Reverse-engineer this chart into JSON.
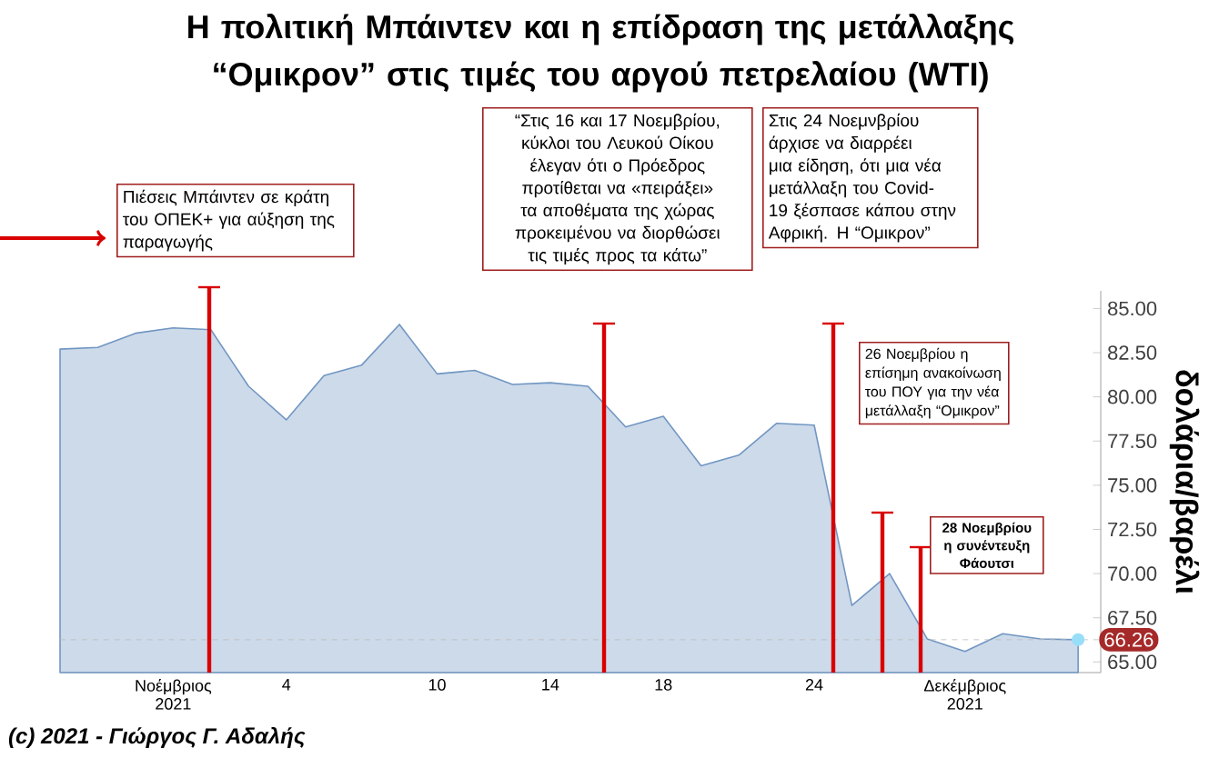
{
  "chart_data": {
    "type": "area",
    "title": "Η πολιτική Μπάιντεν και η επίδραση της μετάλλαξης “Ομικρον” στις τιμές του αργού πετρελαίου (WTI)",
    "ylabel": "δολάρια/βαρέλι",
    "categories": [
      null,
      null,
      null,
      "Νοέμβριος 2021",
      null,
      null,
      "4",
      null,
      null,
      null,
      "10",
      null,
      null,
      "14",
      null,
      null,
      "18",
      null,
      null,
      null,
      "24",
      null,
      null,
      null,
      "Δεκέμβριος 2021",
      null,
      null,
      null
    ],
    "values": [
      82.7,
      82.8,
      83.6,
      83.9,
      83.8,
      80.6,
      78.7,
      81.2,
      81.8,
      84.1,
      81.3,
      81.5,
      80.7,
      80.8,
      80.6,
      78.3,
      78.9,
      76.1,
      76.7,
      78.5,
      78.4,
      68.2,
      70.0,
      66.3,
      65.6,
      66.6,
      66.3,
      66.26
    ],
    "value_labels": [
      null,
      null,
      null,
      null,
      null,
      null,
      null,
      null,
      null,
      null,
      null,
      null,
      null,
      null,
      null,
      null,
      null,
      null,
      null,
      null,
      null,
      null,
      null,
      null,
      null,
      null,
      null,
      "66.26"
    ],
    "color": "#7196c2",
    "ylim": [
      64.4,
      86
    ],
    "yticks": [
      {
        "value": 65,
        "label": "65.00"
      },
      {
        "value": 67.5,
        "label": "67.50"
      },
      {
        "value": 70,
        "label": "70.00"
      },
      {
        "value": 72.5,
        "label": "72.50"
      },
      {
        "value": 75,
        "label": "75.00"
      },
      {
        "value": 77.5,
        "label": "77.50"
      },
      {
        "value": 80,
        "label": "80.00"
      },
      {
        "value": 82.5,
        "label": "82.50"
      },
      {
        "value": 85,
        "label": "85.00"
      }
    ],
    "ref_lines": [
      {
        "axis": "y",
        "value": 66.26,
        "color": "#bbbbbb",
        "line_style": "dashed"
      }
    ],
    "annotations": [
      "Πιέσεις Μπάιντεν σε κράτη του ΟΠΕΚ+ για αύξηση της παραγωγής",
      "“Στις 16 και 17 Νοεμβρίου, κύκλοι του Λευκού Οίκου έλεγαν ότι ο Πρόεδρος προτίθεται να «πειράξει» τα αποθέματα της χώρας προκειμένου να διορθώσει τις τιμές προς τα κάτω”",
      "Στις 24 Νοεμνβρίου άρχισε να διαρρέει μια είδηση, ότι μια νέα μετάλλαξη του Covid-19 ξέσπασε κάπου στην Αφρική. Η “Ομικρον”",
      "26 Νοεμβρίου η επίσημη ανακοίνωση του ΠΟΥ για την νέα μετάλλαξη “Ομικρον”",
      "28 Νοεμβρίου η συνέντευξη Φάουτσι",
      "(c) 2021 - Γιώργος Γ. Αδαλής"
    ]
  }
}
